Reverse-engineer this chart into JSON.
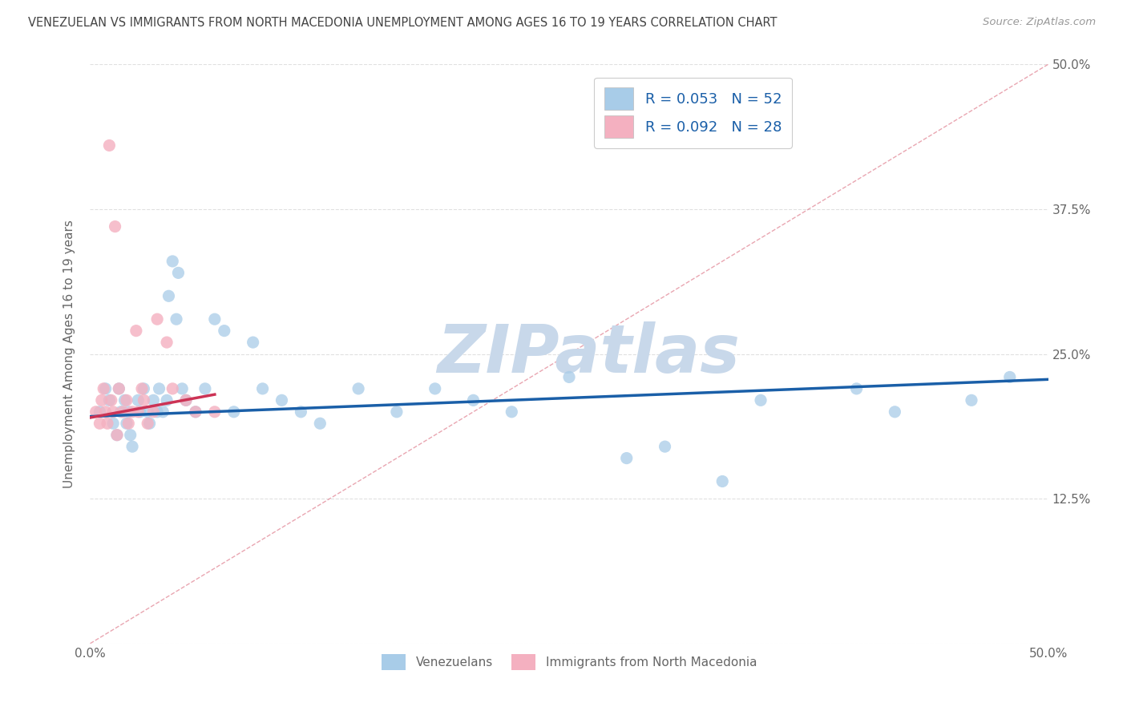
{
  "title": "VENEZUELAN VS IMMIGRANTS FROM NORTH MACEDONIA UNEMPLOYMENT AMONG AGES 16 TO 19 YEARS CORRELATION CHART",
  "source": "Source: ZipAtlas.com",
  "ylabel": "Unemployment Among Ages 16 to 19 years",
  "xmin": 0.0,
  "xmax": 0.5,
  "ymin": 0.0,
  "ymax": 0.5,
  "legend_R1": "R = 0.053",
  "legend_N1": "N = 52",
  "legend_R2": "R = 0.092",
  "legend_N2": "N = 28",
  "legend_label1": "Venezuelans",
  "legend_label2": "Immigrants from North Macedonia",
  "color_blue": "#a8cce8",
  "color_pink": "#f4b0c0",
  "color_blue_line": "#1a5fa8",
  "color_pink_line": "#cc3355",
  "color_legend_text": "#1a5fa8",
  "color_axis_text": "#666666",
  "background_color": "#ffffff",
  "watermark": "ZIPatlas",
  "watermark_color": "#c8d8ea",
  "grid_color": "#e0e0e0",
  "title_color": "#444444",
  "source_color": "#999999",
  "ven_x": [
    0.005,
    0.008,
    0.01,
    0.012,
    0.014,
    0.015,
    0.016,
    0.018,
    0.019,
    0.02,
    0.021,
    0.022,
    0.025,
    0.026,
    0.028,
    0.03,
    0.031,
    0.033,
    0.035,
    0.036,
    0.038,
    0.04,
    0.041,
    0.043,
    0.045,
    0.046,
    0.048,
    0.05,
    0.055,
    0.06,
    0.065,
    0.07,
    0.075,
    0.085,
    0.09,
    0.1,
    0.11,
    0.12,
    0.14,
    0.16,
    0.18,
    0.2,
    0.22,
    0.25,
    0.28,
    0.3,
    0.33,
    0.35,
    0.4,
    0.42,
    0.46,
    0.48
  ],
  "ven_y": [
    0.2,
    0.22,
    0.21,
    0.19,
    0.18,
    0.22,
    0.2,
    0.21,
    0.19,
    0.2,
    0.18,
    0.17,
    0.21,
    0.2,
    0.22,
    0.2,
    0.19,
    0.21,
    0.2,
    0.22,
    0.2,
    0.21,
    0.3,
    0.33,
    0.28,
    0.32,
    0.22,
    0.21,
    0.2,
    0.22,
    0.28,
    0.27,
    0.2,
    0.26,
    0.22,
    0.21,
    0.2,
    0.19,
    0.22,
    0.2,
    0.22,
    0.21,
    0.2,
    0.23,
    0.16,
    0.17,
    0.14,
    0.21,
    0.22,
    0.2,
    0.21,
    0.23
  ],
  "mac_x": [
    0.003,
    0.005,
    0.006,
    0.007,
    0.008,
    0.009,
    0.01,
    0.011,
    0.012,
    0.013,
    0.014,
    0.015,
    0.017,
    0.019,
    0.02,
    0.022,
    0.024,
    0.025,
    0.027,
    0.028,
    0.03,
    0.033,
    0.035,
    0.04,
    0.043,
    0.05,
    0.055,
    0.065
  ],
  "mac_y": [
    0.2,
    0.19,
    0.21,
    0.22,
    0.2,
    0.19,
    0.43,
    0.21,
    0.2,
    0.36,
    0.18,
    0.22,
    0.2,
    0.21,
    0.19,
    0.2,
    0.27,
    0.2,
    0.22,
    0.21,
    0.19,
    0.2,
    0.28,
    0.26,
    0.22,
    0.21,
    0.2,
    0.2
  ],
  "ven_trend_x": [
    0.0,
    0.5
  ],
  "ven_trend_y": [
    0.196,
    0.228
  ],
  "mac_trend_x": [
    0.0,
    0.065
  ],
  "mac_trend_y": [
    0.195,
    0.215
  ]
}
